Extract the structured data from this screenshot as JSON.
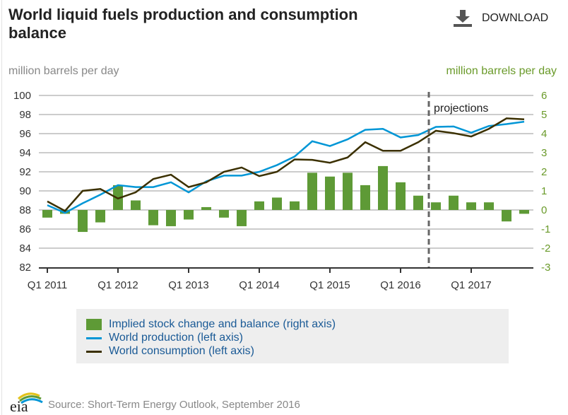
{
  "header": {
    "title": "World liquid fuels production and consumption balance",
    "download_label": "DOWNLOAD",
    "download_icon": "download-icon"
  },
  "colors": {
    "bars": "#5e9a36",
    "production": "#0096d6",
    "consumption": "#3b3000",
    "right_axis": "#6a9a2a",
    "left_axis": "#888888"
  },
  "chart_data": {
    "type": "bar+line",
    "title": "World liquid fuels production and consumption balance",
    "ylabel_left": "million barrels per day",
    "ylabel_right": "million barrels per day",
    "ylim_left": [
      82,
      100
    ],
    "ylim_right": [
      -3,
      6
    ],
    "yticks_left": [
      "100",
      "98",
      "96",
      "94",
      "92",
      "90",
      "88",
      "86",
      "84",
      "82"
    ],
    "yticks_right": [
      "6",
      "5",
      "4",
      "3",
      "2",
      "1",
      "0",
      "-1",
      "-2",
      "-3"
    ],
    "xtick_labels": [
      "Q1 2011",
      "Q1 2012",
      "Q1 2013",
      "Q1 2014",
      "Q1 2015",
      "Q1 2016",
      "Q1 2017"
    ],
    "categories": [
      "Q1 2011",
      "Q2 2011",
      "Q3 2011",
      "Q4 2011",
      "Q1 2012",
      "Q2 2012",
      "Q3 2012",
      "Q4 2012",
      "Q1 2013",
      "Q2 2013",
      "Q3 2013",
      "Q4 2013",
      "Q1 2014",
      "Q2 2014",
      "Q3 2014",
      "Q4 2014",
      "Q1 2015",
      "Q2 2015",
      "Q3 2015",
      "Q4 2015",
      "Q1 2016",
      "Q2 2016",
      "Q3 2016",
      "Q4 2016",
      "Q1 2017",
      "Q2 2017",
      "Q3 2017",
      "Q4 2017"
    ],
    "grid": true,
    "legend_placement": "bottom",
    "projections_label": "projections",
    "projections_start": "Q3 2016",
    "series": [
      {
        "name": "Implied stock change and balance (right axis)",
        "type": "bar",
        "axis": "right",
        "values": [
          -0.4,
          -0.2,
          -1.15,
          -0.65,
          1.3,
          0.5,
          -0.8,
          -0.85,
          -0.5,
          0.15,
          -0.4,
          -0.85,
          0.45,
          0.65,
          0.45,
          1.95,
          1.75,
          1.95,
          1.3,
          2.3,
          1.45,
          0.75,
          0.4,
          0.75,
          0.4,
          0.4,
          -0.6,
          -0.2
        ]
      },
      {
        "name": "World production (left axis)",
        "type": "line",
        "axis": "left",
        "values": [
          88.5,
          87.7,
          88.7,
          89.6,
          90.6,
          90.4,
          90.4,
          90.9,
          89.85,
          91.0,
          91.6,
          91.6,
          92.0,
          92.7,
          93.6,
          95.2,
          94.7,
          95.4,
          96.4,
          96.5,
          95.6,
          95.85,
          96.7,
          96.75,
          96.1,
          96.8,
          97.0,
          97.25
        ]
      },
      {
        "name": "World consumption (left axis)",
        "type": "line",
        "axis": "left",
        "values": [
          88.9,
          87.9,
          90.0,
          90.2,
          89.2,
          89.85,
          91.25,
          91.7,
          90.4,
          90.9,
          92.0,
          92.45,
          91.55,
          92.0,
          93.3,
          93.25,
          92.95,
          93.5,
          95.1,
          94.2,
          94.2,
          95.1,
          96.3,
          96.05,
          95.7,
          96.5,
          97.6,
          97.5
        ]
      }
    ]
  },
  "footer": {
    "source": "Source: Short-Term Energy Outlook, September 2016",
    "logo_text": "eia"
  }
}
